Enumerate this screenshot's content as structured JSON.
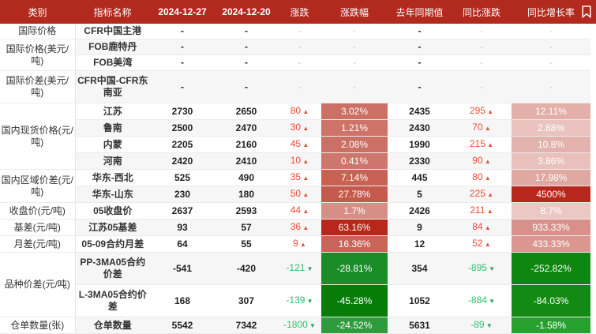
{
  "header": {
    "columns": [
      "类别",
      "指标名称",
      "2024-12-27",
      "2024-12-20",
      "涨跌",
      "涨跌幅",
      "去年同期值",
      "同比涨跌",
      "同比增长率"
    ],
    "bookmark_icon": "bookmark-icon"
  },
  "colors": {
    "header_bg": "#B2291E",
    "up_text": "#EE4B35",
    "down_text": "#2DC06E",
    "stripe": "#F6F6F6",
    "row_border": "#EBEBEB",
    "deep_red": "#B7271B",
    "deep_green": "#077D07"
  },
  "table": {
    "rows": [
      {
        "cat": {
          "text": "国际价格",
          "span": 1
        },
        "ind": "CFR中国主港",
        "v1": "-",
        "v2": "-",
        "chg": "-",
        "pct": "-",
        "ly": "-",
        "yoy": "-",
        "ypct": "-"
      },
      {
        "cat": {
          "text": "国际价格(美元/吨)",
          "span": 2
        },
        "ind": "FOB鹿特丹",
        "v1": "-",
        "v2": "-",
        "chg": "-",
        "pct": "-",
        "ly": "-",
        "yoy": "-",
        "ypct": "-"
      },
      {
        "ind": "FOB美湾",
        "v1": "-",
        "v2": "-",
        "chg": "-",
        "pct": "-",
        "ly": "-",
        "yoy": "-",
        "ypct": "-"
      },
      {
        "cat": {
          "text": "国际价差(美元/吨)",
          "span": 1
        },
        "ind": "CFR中国-CFR东南亚",
        "tall": true,
        "v1": "-",
        "v2": "-",
        "chg": "-",
        "pct": "-",
        "ly": "-",
        "yoy": "-",
        "ypct": "-"
      },
      {
        "cat": {
          "text": "国内现货价格(元/吨)",
          "span": 4
        },
        "ind": "江苏",
        "v1": "2730",
        "v2": "2650",
        "chg": "80",
        "dir": "up",
        "pct": "3.02%",
        "pctBg": "#CC6F64",
        "ly": "2435",
        "yoy": "295",
        "yoyDir": "up",
        "ypct": "12.11%",
        "ypctBg": "#E2AFA9"
      },
      {
        "ind": "鲁南",
        "v1": "2500",
        "v2": "2470",
        "chg": "30",
        "dir": "up",
        "pct": "1.21%",
        "pctBg": "#CD7368",
        "ly": "2430",
        "yoy": "70",
        "yoyDir": "up",
        "ypct": "2.88%",
        "ypctBg": "#EAC3BF"
      },
      {
        "ind": "内蒙",
        "v1": "2205",
        "v2": "2160",
        "chg": "45",
        "dir": "up",
        "pct": "2.08%",
        "pctBg": "#CC6F64",
        "ly": "1990",
        "yoy": "215",
        "yoyDir": "up",
        "ypct": "10.8%",
        "ypctBg": "#E3B2AC"
      },
      {
        "ind": "河南",
        "v1": "2420",
        "v2": "2410",
        "chg": "10",
        "dir": "up",
        "pct": "0.41%",
        "pctBg": "#CE766B",
        "ly": "2330",
        "yoy": "90",
        "yoyDir": "up",
        "ypct": "3.86%",
        "ypctBg": "#E9C0BB"
      },
      {
        "cat": {
          "text": "国内区域价差(元/吨)",
          "span": 2
        },
        "ind": "华东-西北",
        "v1": "525",
        "v2": "490",
        "chg": "35",
        "dir": "up",
        "pct": "7.14%",
        "pctBg": "#C96253",
        "ly": "445",
        "yoy": "80",
        "yoyDir": "up",
        "ypct": "17.98%",
        "ypctBg": "#DFA8A1"
      },
      {
        "ind": "华东-山东",
        "v1": "230",
        "v2": "180",
        "chg": "50",
        "dir": "up",
        "pct": "27.78%",
        "pctBg": "#C45A4D",
        "ly": "5",
        "yoy": "225",
        "yoyDir": "up",
        "ypct": "4500%",
        "ypctBg": "#B7271B"
      },
      {
        "cat": {
          "text": "收盘价(元/吨)",
          "span": 1
        },
        "ind": "05收盘价",
        "v1": "2637",
        "v2": "2593",
        "chg": "44",
        "dir": "up",
        "pct": "1.7%",
        "pctBg": "#D68F87",
        "ly": "2426",
        "yoy": "211",
        "yoyDir": "up",
        "ypct": "8.7%",
        "ypctBg": "#ECC8C4"
      },
      {
        "cat": {
          "text": "基差(元/吨)",
          "span": 1
        },
        "ind": "江苏05基差",
        "v1": "93",
        "v2": "57",
        "chg": "36",
        "dir": "up",
        "pct": "63.16%",
        "pctBg": "#B7271B",
        "ly": "9",
        "yoy": "84",
        "yoyDir": "up",
        "ypct": "933.33%",
        "ypctBg": "#D8918A"
      },
      {
        "cat": {
          "text": "月差(元/吨)",
          "span": 1
        },
        "ind": "05-09合约月差",
        "v1": "64",
        "v2": "55",
        "chg": "9",
        "dir": "up",
        "pct": "16.36%",
        "pctBg": "#C96458",
        "ly": "12",
        "yoy": "52",
        "yoyDir": "up",
        "ypct": "433.33%",
        "ypctBg": "#DA968F"
      },
      {
        "cat": {
          "text": "品种价差(元/吨)",
          "span": 2
        },
        "ind": "PP-3MA05合约价差",
        "tall": true,
        "v1": "-541",
        "v2": "-420",
        "chg": "-121",
        "dir": "down",
        "pct": "-28.81%",
        "pctBg": "#1C8C28",
        "ly": "354",
        "yoy": "-895",
        "yoyDir": "down",
        "ypct": "-252.82%",
        "ypctBg": "#0D870F"
      },
      {
        "ind": "L-3MA05合约价差",
        "tall": true,
        "v1": "168",
        "v2": "307",
        "chg": "-139",
        "dir": "down",
        "pct": "-45.28%",
        "pctBg": "#077D07",
        "ly": "1052",
        "yoy": "-884",
        "yoyDir": "down",
        "ypct": "-84.03%",
        "ypctBg": "#138A13"
      },
      {
        "cat": {
          "text": "仓单数量(张)",
          "span": 1
        },
        "ind": "仓单数量",
        "v1": "5542",
        "v2": "7342",
        "chg": "-1800",
        "dir": "down",
        "pct": "-24.52%",
        "pctBg": "#2E9C3C",
        "ly": "5631",
        "yoy": "-89",
        "yoyDir": "down",
        "ypct": "-1.58%",
        "ypctBg": "#28A02E"
      }
    ]
  },
  "chart_data": {
    "type": "table",
    "columns": [
      "类别",
      "指标名称",
      "2024-12-27",
      "2024-12-20",
      "涨跌",
      "涨跌幅",
      "去年同期值",
      "同比涨跌",
      "同比增长率"
    ],
    "rows": [
      [
        "国际价格",
        "CFR中国主港",
        "-",
        "-",
        "-",
        "-",
        "-",
        "-",
        "-"
      ],
      [
        "国际价格(美元/吨)",
        "FOB鹿特丹",
        "-",
        "-",
        "-",
        "-",
        "-",
        "-",
        "-"
      ],
      [
        "国际价格(美元/吨)",
        "FOB美湾",
        "-",
        "-",
        "-",
        "-",
        "-",
        "-",
        "-"
      ],
      [
        "国际价差(美元/吨)",
        "CFR中国-CFR东南亚",
        "-",
        "-",
        "-",
        "-",
        "-",
        "-",
        "-"
      ],
      [
        "国内现货价格(元/吨)",
        "江苏",
        2730,
        2650,
        80,
        "3.02%",
        2435,
        295,
        "12.11%"
      ],
      [
        "国内现货价格(元/吨)",
        "鲁南",
        2500,
        2470,
        30,
        "1.21%",
        2430,
        70,
        "2.88%"
      ],
      [
        "国内现货价格(元/吨)",
        "内蒙",
        2205,
        2160,
        45,
        "2.08%",
        1990,
        215,
        "10.8%"
      ],
      [
        "国内现货价格(元/吨)",
        "河南",
        2420,
        2410,
        10,
        "0.41%",
        2330,
        90,
        "3.86%"
      ],
      [
        "国内区域价差(元/吨)",
        "华东-西北",
        525,
        490,
        35,
        "7.14%",
        445,
        80,
        "17.98%"
      ],
      [
        "国内区域价差(元/吨)",
        "华东-山东",
        230,
        180,
        50,
        "27.78%",
        5,
        225,
        "4500%"
      ],
      [
        "收盘价(元/吨)",
        "05收盘价",
        2637,
        2593,
        44,
        "1.7%",
        2426,
        211,
        "8.7%"
      ],
      [
        "基差(元/吨)",
        "江苏05基差",
        93,
        57,
        36,
        "63.16%",
        9,
        84,
        "933.33%"
      ],
      [
        "月差(元/吨)",
        "05-09合约月差",
        64,
        55,
        9,
        "16.36%",
        12,
        52,
        "433.33%"
      ],
      [
        "品种价差(元/吨)",
        "PP-3MA05合约价差",
        -541,
        -420,
        -121,
        "-28.81%",
        354,
        -895,
        "-252.82%"
      ],
      [
        "品种价差(元/吨)",
        "L-3MA05合约价差",
        168,
        307,
        -139,
        "-45.28%",
        1052,
        -884,
        "-84.03%"
      ],
      [
        "仓单数量(张)",
        "仓单数量",
        5542,
        7342,
        -1800,
        "-24.52%",
        5631,
        -89,
        "-1.58%"
      ]
    ]
  }
}
